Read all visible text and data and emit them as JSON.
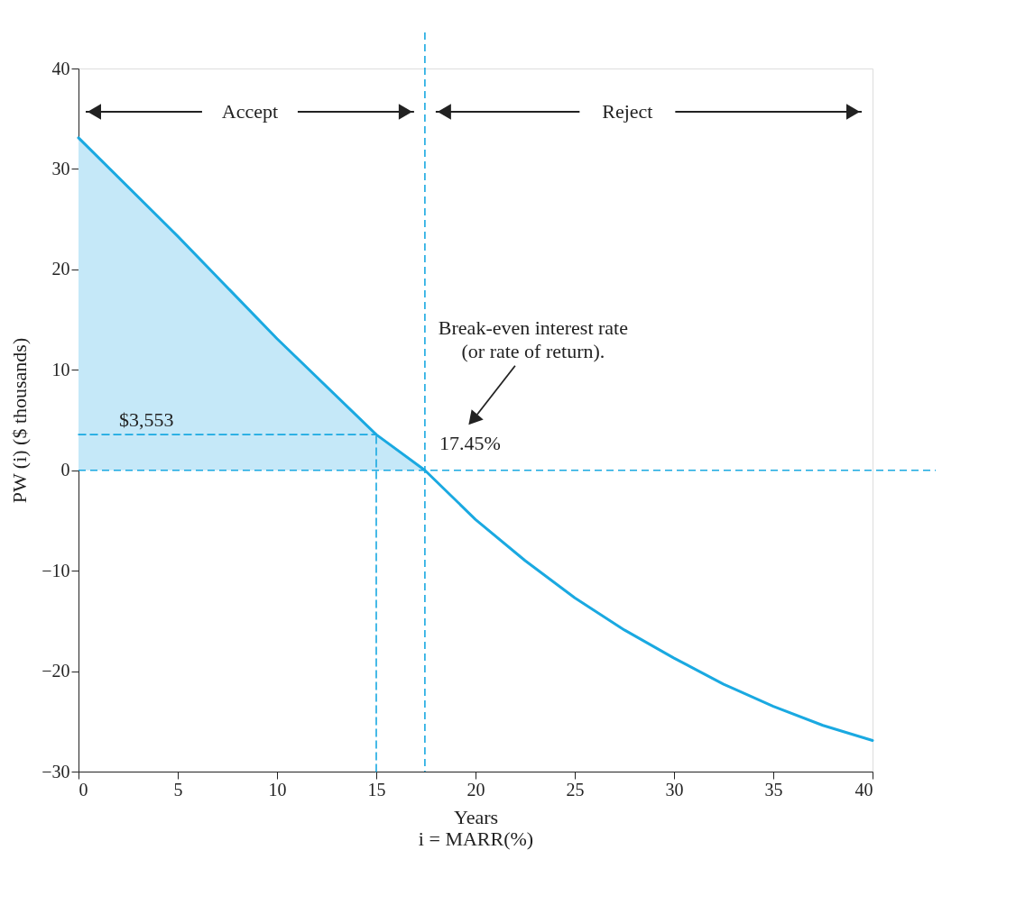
{
  "chart_data": {
    "type": "line",
    "xlabel": "Years\ni = MARR(%)",
    "ylabel": "PW (i) ($ thousands)",
    "xlim": [
      0,
      40
    ],
    "ylim": [
      -30,
      40
    ],
    "xticks": [
      0,
      5,
      10,
      15,
      20,
      25,
      30,
      35,
      40
    ],
    "yticks": [
      -30,
      -20,
      -10,
      0,
      10,
      20,
      30,
      40
    ],
    "grid": false,
    "marker": "none",
    "series": [
      {
        "type": "area",
        "color": "#c5e8f8",
        "x": [
          0,
          5,
          10,
          15,
          17.45
        ],
        "values": [
          33.1,
          23.3,
          13.1,
          3.553,
          0
        ]
      },
      {
        "type": "line",
        "color": "#1aa9e1",
        "line_style": "solid",
        "x": [
          0,
          5,
          10,
          15,
          17.45,
          20,
          22.5,
          25,
          27.5,
          30,
          32.5,
          35,
          37.5,
          40
        ],
        "values": [
          33.1,
          23.3,
          13.1,
          3.553,
          0,
          -4.9,
          -9.0,
          -12.7,
          -15.9,
          -18.7,
          -21.3,
          -23.5,
          -25.4,
          -26.9
        ]
      },
      {
        "type": "line",
        "color": "#1aa9e1",
        "line_style": "dashed",
        "x": [
          15,
          15
        ],
        "values": [
          -30,
          3.553
        ]
      },
      {
        "type": "line",
        "color": "#1aa9e1",
        "line_style": "dashed",
        "x": [
          0,
          15
        ],
        "values": [
          3.553,
          3.553
        ]
      }
    ],
    "ref_lines": [
      {
        "axis": "x",
        "value": 17.45,
        "color": "#1aa9e1",
        "line_style": "dashed"
      },
      {
        "axis": "y",
        "value": 0,
        "color": "#1aa9e1",
        "line_style": "dashed"
      }
    ],
    "annotations": [
      "Accept",
      "Reject",
      "$3,553",
      "17.45%",
      "Break-even interest rate\n(or rate of return)."
    ]
  }
}
